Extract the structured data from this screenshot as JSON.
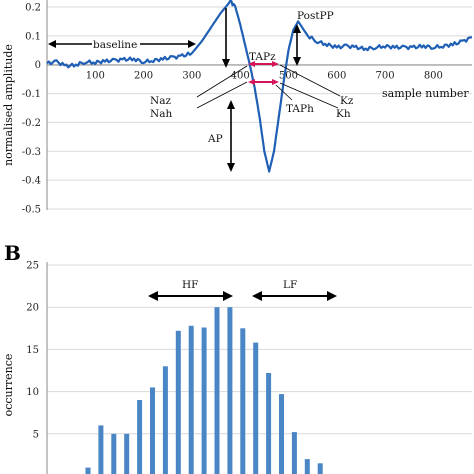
{
  "colors": {
    "signal": "#1f5fb5",
    "bar": "#4a86c5",
    "tap_marker": "#d4145a",
    "annotation": "#000000",
    "grid": "#d9d9d9"
  },
  "panel_b_label": "B",
  "chart_data": [
    {
      "type": "line",
      "ylabel": "normalised amplitude",
      "xlabel": "sample number",
      "ylim": [
        -0.5,
        0.2
      ],
      "xlim": [
        0,
        880
      ],
      "x_ticks": [
        100,
        200,
        300,
        400,
        500,
        600,
        700,
        800
      ],
      "y_ticks": [
        0.2,
        0.1,
        0,
        -0.1,
        -0.2,
        -0.3,
        -0.4,
        -0.5
      ],
      "y_tick_labels": [
        "0.2",
        "0.1",
        "0",
        "-0.1",
        "-0.2",
        "-0.3",
        "-0.4",
        "-0.5"
      ],
      "x_tick_labels": [
        "100",
        "200",
        "300",
        "400",
        "500",
        "600",
        "700",
        "800"
      ],
      "grid": "horizontal",
      "series": [
        {
          "x": [
            0,
            20,
            40,
            60,
            80,
            100,
            120,
            140,
            160,
            180,
            200,
            220,
            240,
            260,
            280,
            300,
            320,
            340,
            360,
            380,
            390,
            400,
            410,
            420,
            430,
            440,
            450,
            460,
            470,
            480,
            490,
            500,
            510,
            520,
            540,
            560,
            580,
            600,
            620,
            640,
            660,
            680,
            700,
            720,
            740,
            760,
            780,
            800,
            820,
            840,
            860,
            880
          ],
          "y": [
            0.005,
            0.01,
            -0.005,
            0.0,
            0.01,
            0.008,
            0.012,
            0.015,
            0.018,
            0.02,
            0.01,
            0.015,
            0.02,
            0.025,
            0.03,
            0.04,
            0.08,
            0.13,
            0.18,
            0.22,
            0.2,
            0.14,
            0.07,
            0.0,
            -0.08,
            -0.18,
            -0.3,
            -0.37,
            -0.3,
            -0.18,
            -0.06,
            0.05,
            0.12,
            0.15,
            0.1,
            0.08,
            0.07,
            0.06,
            0.065,
            0.06,
            0.055,
            0.06,
            0.065,
            0.06,
            0.06,
            0.06,
            0.065,
            0.06,
            0.065,
            0.07,
            0.08,
            0.095
          ]
        }
      ],
      "annotations": {
        "baseline": "baseline",
        "postpp": "PostPP",
        "tapz": "TAPz",
        "taph": "TAPh",
        "naz": "Naz",
        "nah": "Nah",
        "kz": "Kz",
        "kh": "Kh",
        "ap": "AP"
      }
    },
    {
      "type": "bar",
      "ylabel": "occurrence",
      "ylim": [
        0,
        25
      ],
      "y_ticks": [
        5,
        10,
        15,
        20,
        25
      ],
      "y_tick_labels": [
        "5",
        "10",
        "15",
        "20",
        "25"
      ],
      "grid": "horizontal",
      "values": [
        1,
        6,
        5,
        5,
        9,
        10.5,
        13,
        17.2,
        17.8,
        17.6,
        20,
        20,
        17.5,
        15.8,
        12.2,
        9.7,
        5.2,
        2,
        1.5
      ],
      "annotations": {
        "hf": "HF",
        "lf": "LF"
      }
    }
  ]
}
